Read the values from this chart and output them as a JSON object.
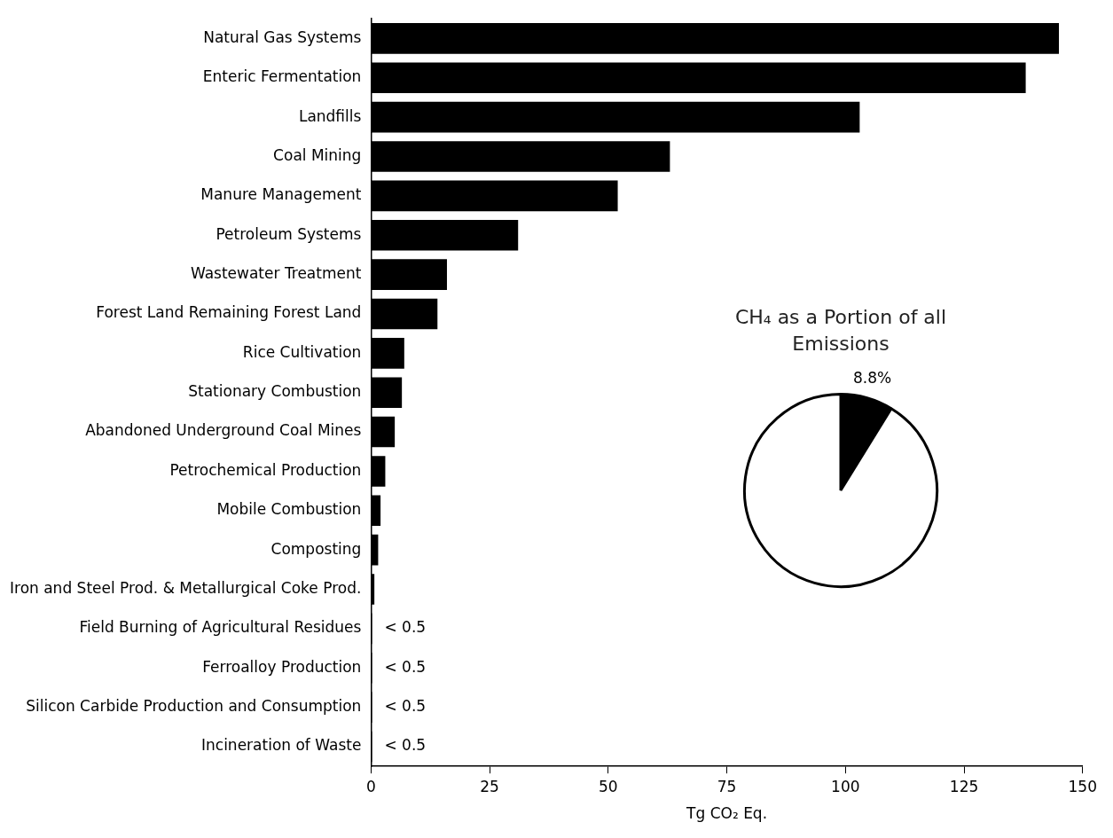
{
  "chart_data": [
    {
      "type": "bar",
      "orientation": "horizontal",
      "xlabel": "Tg CO₂ Eq.",
      "color": "#000000",
      "xlim": [
        0,
        150
      ],
      "xticks": [
        0,
        25,
        50,
        75,
        100,
        125,
        150
      ],
      "grid": false,
      "legend": false,
      "categories": [
        "Natural Gas Systems",
        "Enteric Fermentation",
        "Landfills",
        "Coal Mining",
        "Manure Management",
        "Petroleum Systems",
        "Wastewater Treatment",
        "Forest Land Remaining Forest Land",
        "Rice Cultivation",
        "Stationary Combustion",
        "Abandoned Underground Coal Mines",
        "Petrochemical Production",
        "Mobile Combustion",
        "Composting",
        "Iron and Steel Prod. & Metallurgical Coke Prod.",
        "Field Burning of Agricultural Residues",
        "Ferroalloy Production",
        "Silicon Carbide Production and Consumption",
        "Incineration of Waste"
      ],
      "values": [
        145,
        138,
        103,
        63,
        52,
        31,
        16,
        14,
        7,
        6.5,
        5,
        3,
        2,
        1.5,
        0.7,
        0.2,
        0.2,
        0.2,
        0.2
      ],
      "value_labels": [
        null,
        null,
        null,
        null,
        null,
        null,
        null,
        null,
        null,
        null,
        null,
        null,
        null,
        null,
        null,
        "< 0.5",
        "< 0.5",
        "< 0.5",
        "< 0.5"
      ]
    },
    {
      "type": "pie",
      "title": "CH₄ as a Portion of all Emissions",
      "categories": [
        null,
        null
      ],
      "values": [
        8.8,
        91.2
      ],
      "colors": [
        "#000000",
        "#ffffff"
      ],
      "value_labels": [
        "8.8%",
        null
      ],
      "legend": false
    }
  ]
}
